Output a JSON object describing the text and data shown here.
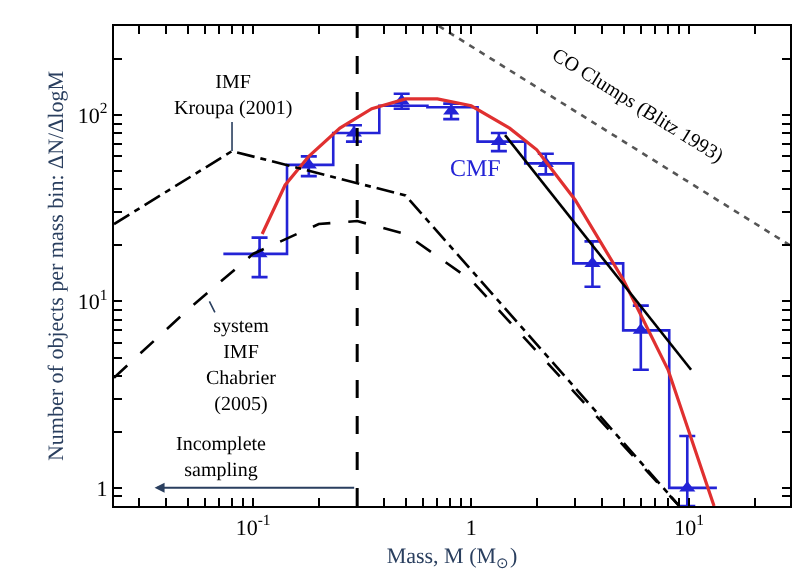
{
  "chart_data": {
    "type": "line",
    "xlabel": "Mass, M (M$_{⊙}$)",
    "ylabel": "Number of objects per mass bin: ΔN/ΔlogM",
    "log": "xy",
    "xlim": [
      0.023,
      29
    ],
    "ylim": [
      0.8,
      300
    ],
    "xticks": [
      {
        "value": 0.03,
        "label": null
      },
      {
        "value": 0.04,
        "label": null
      },
      {
        "value": 0.05,
        "label": null
      },
      {
        "value": 0.06,
        "label": null
      },
      {
        "value": 0.07,
        "label": null
      },
      {
        "value": 0.08,
        "label": null
      },
      {
        "value": 0.09,
        "label": null
      },
      {
        "value": 0.1,
        "label": "10$^{-1}$"
      },
      {
        "value": 0.2,
        "label": null
      },
      {
        "value": 0.3,
        "label": null
      },
      {
        "value": 0.4,
        "label": null
      },
      {
        "value": 0.5,
        "label": null
      },
      {
        "value": 0.6,
        "label": null
      },
      {
        "value": 0.7,
        "label": null
      },
      {
        "value": 0.8,
        "label": null
      },
      {
        "value": 0.9,
        "label": null
      },
      1,
      {
        "value": 2,
        "label": null
      },
      {
        "value": 3,
        "label": null
      },
      {
        "value": 4,
        "label": null
      },
      {
        "value": 5,
        "label": null
      },
      {
        "value": 6,
        "label": null
      },
      {
        "value": 7,
        "label": null
      },
      {
        "value": 8,
        "label": null
      },
      {
        "value": 9,
        "label": null
      },
      {
        "value": 10,
        "label": "10$^{1}$"
      },
      {
        "value": 20,
        "label": null
      }
    ],
    "yticks": [
      {
        "value": 0.9,
        "label": null
      },
      1,
      {
        "value": 2,
        "label": null
      },
      {
        "value": 3,
        "label": null
      },
      {
        "value": 4,
        "label": null
      },
      {
        "value": 5,
        "label": null
      },
      {
        "value": 6,
        "label": null
      },
      {
        "value": 7,
        "label": null
      },
      {
        "value": 8,
        "label": null
      },
      {
        "value": 9,
        "label": null
      },
      {
        "value": 10,
        "label": "10$^{1}$"
      },
      {
        "value": 20,
        "label": null
      },
      {
        "value": 30,
        "label": null
      },
      {
        "value": 40,
        "label": null
      },
      {
        "value": 50,
        "label": null
      },
      {
        "value": 60,
        "label": null
      },
      {
        "value": 70,
        "label": null
      },
      {
        "value": 80,
        "label": null
      },
      {
        "value": 90,
        "label": null
      },
      {
        "value": 100,
        "label": "10$^{2}$"
      },
      {
        "value": 200,
        "label": null
      }
    ],
    "series": [
      {
        "type": "scatter",
        "color": "#2323d6",
        "marker": "triangle",
        "x": [
          0.107,
          0.18,
          0.29,
          0.48,
          0.81,
          1.34,
          2.2,
          3.6,
          6.0,
          9.8
        ],
        "values": [
          18,
          54,
          80,
          119,
          105,
          72,
          55,
          16,
          7,
          1.0
        ],
        "errors": [
          [
            13.5,
            22
          ],
          [
            47,
            60
          ],
          [
            72,
            88
          ],
          [
            108,
            130
          ],
          [
            95,
            115
          ],
          [
            64,
            80
          ],
          [
            48,
            62
          ],
          [
            12,
            21
          ],
          [
            4.3,
            9.5
          ],
          [
            0.8,
            1.9
          ]
        ]
      },
      {
        "type": "step",
        "name": "CMF",
        "color": "#2323d6",
        "marker": "none",
        "line_style": "solid",
        "x": [
          0.073,
          0.143,
          0.233,
          0.379,
          0.63,
          1.07,
          1.77,
          2.94,
          4.98,
          8.1,
          13.4
        ],
        "values": [
          18,
          54,
          80,
          112,
          110,
          72,
          55,
          16,
          7,
          1.0,
          1.0
        ]
      },
      {
        "color": "#e03030",
        "marker": "none",
        "line_style": "solid",
        "x": [
          0.11,
          0.14,
          0.18,
          0.25,
          0.35,
          0.5,
          0.7,
          1.0,
          1.5,
          2,
          3,
          5,
          8,
          13
        ],
        "values": [
          23,
          42,
          60,
          85,
          108,
          122,
          122,
          112,
          85,
          65,
          35,
          13,
          4.3,
          0.8
        ]
      },
      {
        "color": "#000000",
        "marker": "none",
        "line_style": "solid",
        "x": [
          1.43,
          10.2
        ],
        "values": [
          78,
          4.3
        ]
      },
      {
        "color": "#000000",
        "marker": "none",
        "line_style": "dashdot",
        "x": [
          0.023,
          0.08,
          0.5,
          9
        ],
        "values": [
          26,
          64,
          37,
          0.8
        ]
      },
      {
        "color": "#000000",
        "marker": "none",
        "line_style": "dashed",
        "x": [
          0.023,
          0.05,
          0.1,
          0.2,
          0.3,
          0.5,
          1.0,
          9
        ],
        "values": [
          3.9,
          9,
          18,
          26,
          27,
          23,
          13,
          0.8
        ]
      },
      {
        "color": "#555555",
        "marker": "none",
        "line_style": "dotted",
        "x": [
          0.71,
          29
        ],
        "values": [
          300,
          20
        ]
      }
    ],
    "ref_lines": [
      {
        "axis": "x",
        "value": 0.3,
        "color": "#000000",
        "line_style": "dashed"
      }
    ],
    "annotations": [
      {
        "text": "IMF\nKroupa (2001)",
        "x": 0.08,
        "y": 64
      },
      {
        "text": "system\nIMF\nChabrier\n(2005)",
        "x": 0.063,
        "y": 10
      },
      "CO Clumps (Blitz 1993)",
      "Incomplete\nsampling"
    ]
  }
}
